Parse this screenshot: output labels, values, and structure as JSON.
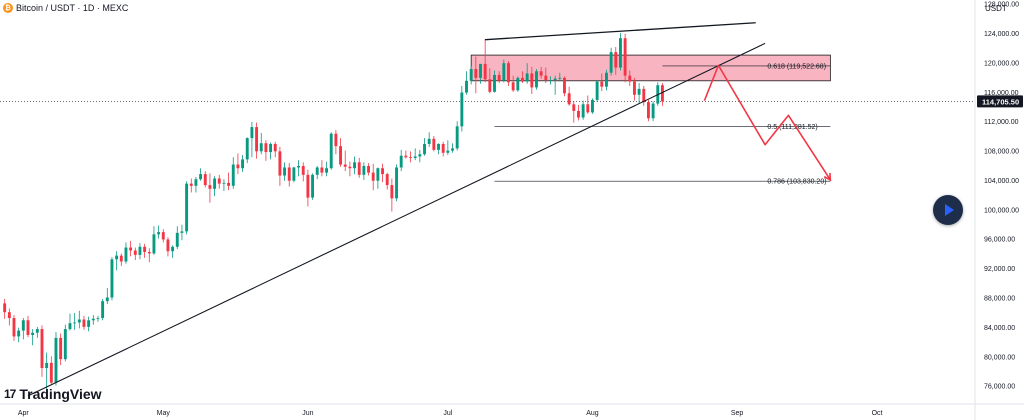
{
  "header": {
    "title": "Bitcoin / USDT · 1D · MEXC",
    "coin_icon": "bitcoin-icon",
    "coin_glyph": "₿"
  },
  "axis_unit": "USDT",
  "brand": {
    "name": "TradingView",
    "mark": "17"
  },
  "colors": {
    "up": "#089981",
    "down": "#f23645",
    "zone": "#f7a8b6",
    "zone_border": "#1a1a1a",
    "arrow": "#f23645",
    "line": "#131722"
  },
  "chart_data": {
    "type": "candlestick",
    "y_ticks": [
      "76,000.00",
      "80,000.00",
      "84,000.00",
      "88,000.00",
      "92,000.00",
      "96,000.00",
      "100,000.00",
      "104,000.00",
      "108,000.00",
      "112,000.00",
      "116,000.00",
      "120,000.00",
      "124,000.00",
      "128,000.00"
    ],
    "y_tick_values": [
      76000,
      80000,
      84000,
      88000,
      92000,
      96000,
      100000,
      104000,
      108000,
      112000,
      116000,
      120000,
      124000,
      128000
    ],
    "y_range": [
      73500,
      128500
    ],
    "x_ticks": [
      "Apr",
      "May",
      "Jun",
      "Jul",
      "Aug",
      "Sep",
      "Oct"
    ],
    "x_tick_dates": [
      "2025-04-01",
      "2025-05-01",
      "2025-06-01",
      "2025-07-01",
      "2025-08-01",
      "2025-09-01",
      "2025-10-01"
    ],
    "x_range": [
      "2025-03-27",
      "2025-10-22"
    ],
    "current_price": {
      "label": "114,705.50",
      "value": 114705.5
    },
    "candles_start": "2025-03-28",
    "candles": [
      [
        87200,
        87800,
        85100,
        86000
      ],
      [
        86000,
        86500,
        84200,
        85200
      ],
      [
        85200,
        85600,
        82100,
        82700
      ],
      [
        82700,
        83900,
        81900,
        83500
      ],
      [
        83500,
        85200,
        82300,
        84900
      ],
      [
        84900,
        85500,
        82600,
        82900
      ],
      [
        82900,
        83700,
        81500,
        83200
      ],
      [
        83200,
        84000,
        82500,
        83700
      ],
      [
        83700,
        84200,
        77200,
        78400
      ],
      [
        78400,
        80500,
        74600,
        79100
      ],
      [
        79100,
        80000,
        76200,
        76400
      ],
      [
        76400,
        83300,
        76000,
        82500
      ],
      [
        82500,
        83100,
        78800,
        79600
      ],
      [
        79600,
        84300,
        79300,
        83700
      ],
      [
        83700,
        85800,
        83500,
        84500
      ],
      [
        84500,
        85900,
        83600,
        84600
      ],
      [
        84600,
        86200,
        83800,
        85000
      ],
      [
        85000,
        85500,
        83600,
        84000
      ],
      [
        84000,
        85400,
        83400,
        84900
      ],
      [
        84900,
        85600,
        84300,
        85100
      ],
      [
        85100,
        85500,
        84700,
        85200
      ],
      [
        85200,
        87800,
        84900,
        87500
      ],
      [
        87500,
        89300,
        87100,
        88000
      ],
      [
        88000,
        93500,
        87600,
        93200
      ],
      [
        93200,
        94300,
        91700,
        93700
      ],
      [
        93700,
        94000,
        92300,
        92900
      ],
      [
        92900,
        95500,
        92600,
        94800
      ],
      [
        94800,
        95700,
        93600,
        94400
      ],
      [
        94400,
        94800,
        93100,
        93800
      ],
      [
        93800,
        95400,
        93200,
        94900
      ],
      [
        94900,
        95300,
        93400,
        94200
      ],
      [
        94200,
        94700,
        92800,
        94000
      ],
      [
        94000,
        97700,
        93800,
        96600
      ],
      [
        96600,
        97800,
        96000,
        96900
      ],
      [
        96900,
        97300,
        95500,
        95900
      ],
      [
        95900,
        96200,
        93600,
        94300
      ],
      [
        94300,
        95100,
        93400,
        94900
      ],
      [
        94900,
        97700,
        94600,
        96800
      ],
      [
        96800,
        97900,
        95800,
        97000
      ],
      [
        97000,
        103800,
        96600,
        103500
      ],
      [
        103500,
        104200,
        102300,
        103200
      ],
      [
        103200,
        104400,
        102300,
        104100
      ],
      [
        104100,
        105600,
        103900,
        104800
      ],
      [
        104800,
        105200,
        103000,
        103300
      ],
      [
        103300,
        104900,
        100900,
        102800
      ],
      [
        102800,
        104500,
        101800,
        104200
      ],
      [
        104200,
        104700,
        102800,
        103500
      ],
      [
        103500,
        104100,
        102500,
        103600
      ],
      [
        103600,
        105000,
        102600,
        103200
      ],
      [
        103200,
        107100,
        102800,
        106100
      ],
      [
        106100,
        107600,
        104800,
        105600
      ],
      [
        105600,
        107400,
        105100,
        106800
      ],
      [
        106800,
        109800,
        106300,
        109700
      ],
      [
        109700,
        111900,
        107100,
        111200
      ],
      [
        111200,
        111800,
        106900,
        107900
      ],
      [
        107900,
        110400,
        107500,
        109000
      ],
      [
        109000,
        109400,
        106600,
        107800
      ],
      [
        107800,
        109100,
        106800,
        108900
      ],
      [
        108900,
        109200,
        107100,
        107900
      ],
      [
        107900,
        108500,
        103200,
        104600
      ],
      [
        104600,
        106400,
        103900,
        105700
      ],
      [
        105700,
        106300,
        103100,
        103900
      ],
      [
        103900,
        105800,
        103700,
        105700
      ],
      [
        105700,
        106700,
        104500,
        105900
      ],
      [
        105900,
        106400,
        103800,
        104700
      ],
      [
        104700,
        105400,
        100400,
        101600
      ],
      [
        101600,
        104900,
        101300,
        104700
      ],
      [
        104700,
        105900,
        104100,
        105700
      ],
      [
        105700,
        106700,
        104500,
        105000
      ],
      [
        105000,
        106500,
        104500,
        105600
      ],
      [
        105600,
        110500,
        105400,
        110300
      ],
      [
        110300,
        110800,
        107500,
        108600
      ],
      [
        108600,
        109700,
        105800,
        106100
      ],
      [
        106100,
        108000,
        105200,
        105800
      ],
      [
        105800,
        106500,
        104500,
        105600
      ],
      [
        105600,
        107200,
        104800,
        106400
      ],
      [
        106400,
        107000,
        104300,
        104700
      ],
      [
        104700,
        106400,
        104000,
        105900
      ],
      [
        105900,
        106300,
        104600,
        105000
      ],
      [
        105000,
        106200,
        102600,
        103900
      ],
      [
        103900,
        105700,
        102800,
        105600
      ],
      [
        105600,
        106200,
        103700,
        104800
      ],
      [
        104800,
        105000,
        102700,
        103300
      ],
      [
        103300,
        104200,
        99700,
        101500
      ],
      [
        101500,
        106100,
        101100,
        105700
      ],
      [
        105700,
        108100,
        105200,
        107300
      ],
      [
        107300,
        108000,
        106900,
        107100
      ],
      [
        107100,
        107900,
        106400,
        107000
      ],
      [
        107000,
        108300,
        106700,
        107200
      ],
      [
        107200,
        108100,
        106400,
        107500
      ],
      [
        107500,
        109700,
        107300,
        108900
      ],
      [
        108900,
        110500,
        108500,
        109600
      ],
      [
        109600,
        110000,
        107900,
        108100
      ],
      [
        108100,
        109000,
        107500,
        108900
      ],
      [
        108900,
        109200,
        107200,
        107700
      ],
      [
        107700,
        109400,
        107400,
        108000
      ],
      [
        108000,
        109000,
        107700,
        108300
      ],
      [
        108300,
        112000,
        108000,
        111300
      ],
      [
        111300,
        116800,
        110600,
        115900
      ],
      [
        115900,
        118800,
        115600,
        117500
      ],
      [
        117500,
        119500,
        117000,
        119100
      ],
      [
        119100,
        120800,
        115800,
        117900
      ],
      [
        117900,
        119800,
        117100,
        119800
      ],
      [
        119800,
        123200,
        117300,
        117700
      ],
      [
        117700,
        119200,
        115800,
        116000
      ],
      [
        116000,
        118900,
        115900,
        118300
      ],
      [
        118300,
        118800,
        117200,
        117500
      ],
      [
        117500,
        120400,
        117300,
        119900
      ],
      [
        119900,
        120200,
        116800,
        117300
      ],
      [
        117300,
        118200,
        116000,
        116200
      ],
      [
        116200,
        118100,
        116000,
        117900
      ],
      [
        117900,
        118800,
        117200,
        117400
      ],
      [
        117400,
        119900,
        117100,
        118500
      ],
      [
        118500,
        119400,
        115700,
        116600
      ],
      [
        116600,
        119100,
        116300,
        118800
      ],
      [
        118800,
        119400,
        117800,
        118200
      ],
      [
        118200,
        119300,
        117200,
        117600
      ],
      [
        117600,
        118100,
        117000,
        117600
      ],
      [
        117600,
        118200,
        115600,
        117800
      ],
      [
        117800,
        118600,
        117400,
        117900
      ],
      [
        117900,
        118100,
        115400,
        115800
      ],
      [
        115800,
        116700,
        114100,
        114300
      ],
      [
        114300,
        114700,
        111800,
        113400
      ],
      [
        113400,
        114200,
        112100,
        112500
      ],
      [
        112500,
        114800,
        112200,
        114300
      ],
      [
        114300,
        115500,
        113000,
        113200
      ],
      [
        113200,
        115100,
        113000,
        114900
      ],
      [
        114900,
        117600,
        114600,
        117400
      ],
      [
        117400,
        118500,
        116100,
        116700
      ],
      [
        116700,
        119000,
        116200,
        118600
      ],
      [
        118600,
        122000,
        118200,
        121400
      ],
      [
        121400,
        122100,
        118300,
        119300
      ],
      [
        119300,
        124000,
        118900,
        123300
      ],
      [
        123300,
        123900,
        117300,
        118200
      ],
      [
        118200,
        118900,
        116800,
        117400
      ],
      [
        117400,
        117900,
        114800,
        115600
      ],
      [
        115600,
        117200,
        114400,
        116400
      ],
      [
        116400,
        116800,
        114100,
        114600
      ],
      [
        114600,
        114900,
        112000,
        112400
      ],
      [
        112400,
        114700,
        112000,
        114400
      ],
      [
        114400,
        117300,
        114100,
        116900
      ],
      [
        116900,
        117200,
        114100,
        114705.5
      ]
    ],
    "resistance_line": [
      [
        "2025-07-09",
        123100
      ],
      [
        "2025-09-05",
        125400
      ]
    ],
    "support_line": [
      [
        "2025-04-02",
        74600
      ],
      [
        "2025-09-07",
        122600
      ]
    ],
    "zone": {
      "from": "2025-07-06",
      "to": "2025-09-21",
      "low": 117500,
      "high": 121000
    },
    "fib_levels": [
      {
        "label": "0.618 (119,522.68)",
        "value": 119522.68,
        "from": "2025-08-16",
        "to": "2025-09-21"
      },
      {
        "label": "0.5 (111,281.52)",
        "value": 111281.52,
        "from": "2025-07-11",
        "to": "2025-09-21"
      },
      {
        "label": "0.786 (103,830.20)",
        "value": 103830.2,
        "from": "2025-07-11",
        "to": "2025-09-21"
      }
    ],
    "projection": [
      [
        "2025-08-25",
        114800
      ],
      [
        "2025-08-28",
        119600
      ],
      [
        "2025-09-07",
        108800
      ],
      [
        "2025-09-12",
        112800
      ],
      [
        "2025-09-21",
        104000
      ]
    ],
    "grid": false
  }
}
